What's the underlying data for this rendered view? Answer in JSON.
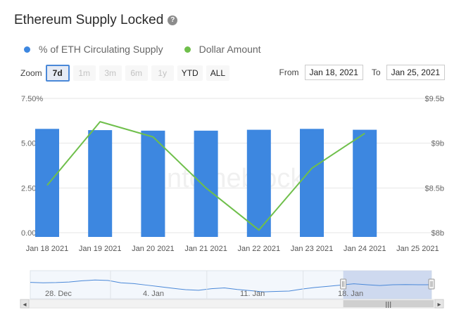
{
  "header": {
    "title": "Ethereum Supply Locked",
    "help_icon": "question-circle-icon",
    "help_glyph": "?"
  },
  "legend": [
    {
      "label": "% of ETH Circulating Supply",
      "color": "#3d87e0"
    },
    {
      "label": "Dollar Amount",
      "color": "#6fbf4b"
    }
  ],
  "zoom": {
    "label": "Zoom",
    "buttons": [
      {
        "label": "7d",
        "state": "active"
      },
      {
        "label": "1m",
        "state": "disabled"
      },
      {
        "label": "3m",
        "state": "disabled"
      },
      {
        "label": "6m",
        "state": "disabled"
      },
      {
        "label": "1y",
        "state": "disabled"
      },
      {
        "label": "YTD",
        "state": "enabled"
      },
      {
        "label": "ALL",
        "state": "enabled"
      }
    ]
  },
  "range": {
    "from_label": "From",
    "from_value": "Jan 18, 2021",
    "to_label": "To",
    "to_value": "Jan 25, 2021"
  },
  "watermark": "intotheblock",
  "chart_data": {
    "type": "bar",
    "categories": [
      "Jan 18 2021",
      "Jan 19 2021",
      "Jan 20 2021",
      "Jan 21 2021",
      "Jan 22 2021",
      "Jan 23 2021",
      "Jan 24 2021",
      "Jan 25 2021"
    ],
    "series": [
      {
        "name": "% of ETH Circulating Supply",
        "type": "bar",
        "axis": "left",
        "color": "#3d87e0",
        "values": [
          5.8,
          5.73,
          5.7,
          5.7,
          5.75,
          5.8,
          5.75,
          null
        ]
      },
      {
        "name": "Dollar Amount",
        "type": "line",
        "axis": "right",
        "color": "#6fbf4b",
        "values": [
          8.53,
          9.24,
          9.07,
          8.5,
          8.03,
          8.72,
          9.11,
          null
        ]
      }
    ],
    "y_left": {
      "min": 0,
      "max": 7.5,
      "ticks": [
        0,
        2.5,
        5,
        7.5
      ],
      "tick_labels": [
        "0.00%",
        "2.50%",
        "5.00%",
        "7.50%"
      ]
    },
    "y_right": {
      "min": 8,
      "max": 9.5,
      "ticks": [
        8,
        8.5,
        9,
        9.5
      ],
      "tick_labels": [
        "$8b",
        "$8.5b",
        "$9b",
        "$9.5b"
      ]
    },
    "grid": true,
    "legend_position": "top-left"
  },
  "navigator": {
    "labels": [
      "28. Dec",
      "4. Jan",
      "11. Jan",
      "18. Jan"
    ],
    "series_values": [
      0.62,
      0.6,
      0.61,
      0.64,
      0.7,
      0.74,
      0.72,
      0.6,
      0.56,
      0.48,
      0.4,
      0.32,
      0.25,
      0.22,
      0.3,
      0.34,
      0.26,
      0.2,
      0.14,
      0.16,
      0.18,
      0.28,
      0.36,
      0.42,
      0.48,
      0.55,
      0.5,
      0.46,
      0.5,
      0.51,
      0.5,
      0.5
    ],
    "selected_from": 0.78,
    "scroll_left_icon": "arrow-left-icon",
    "scroll_right_icon": "arrow-right-icon",
    "scroll_left_glyph": "◂",
    "scroll_right_glyph": "▸",
    "scroll_grip_glyph": "|||"
  }
}
